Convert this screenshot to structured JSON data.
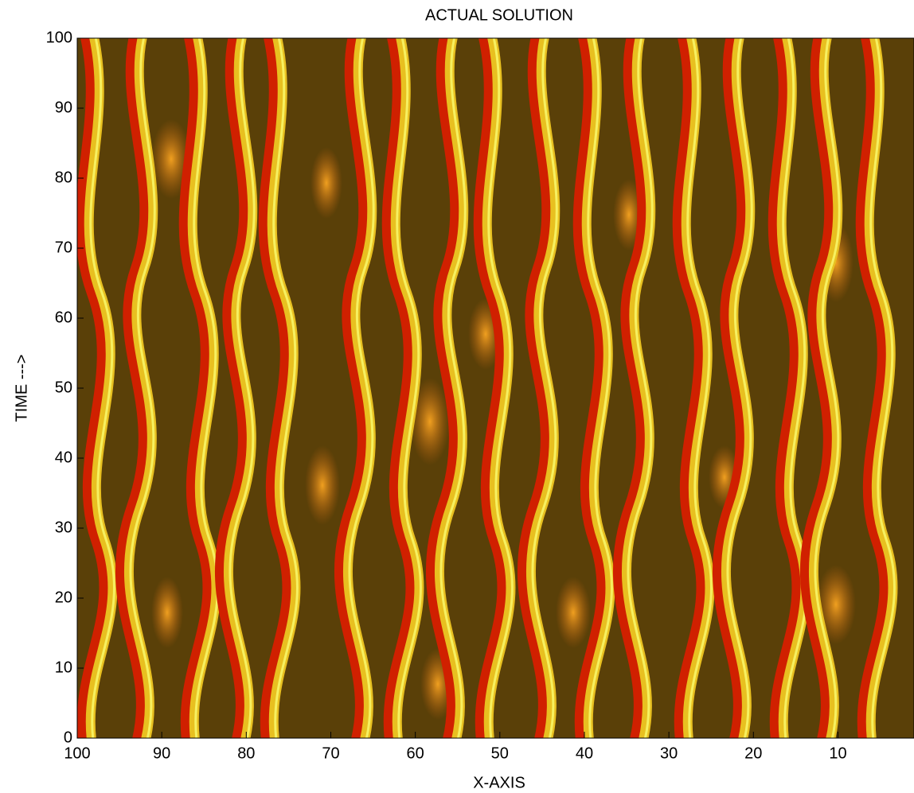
{
  "chart_data": {
    "type": "surface",
    "title": "ACTUAL SOLUTION",
    "x_label": "X-AXIS",
    "y_label": "TIME --->",
    "xlim": [
      100,
      1
    ],
    "xticks": [
      100,
      90,
      80,
      70,
      60,
      50,
      40,
      30,
      20,
      10
    ],
    "ylim": [
      0,
      100
    ],
    "yticks": [
      0,
      10,
      20,
      30,
      40,
      50,
      60,
      70,
      80,
      90,
      100
    ]
  }
}
